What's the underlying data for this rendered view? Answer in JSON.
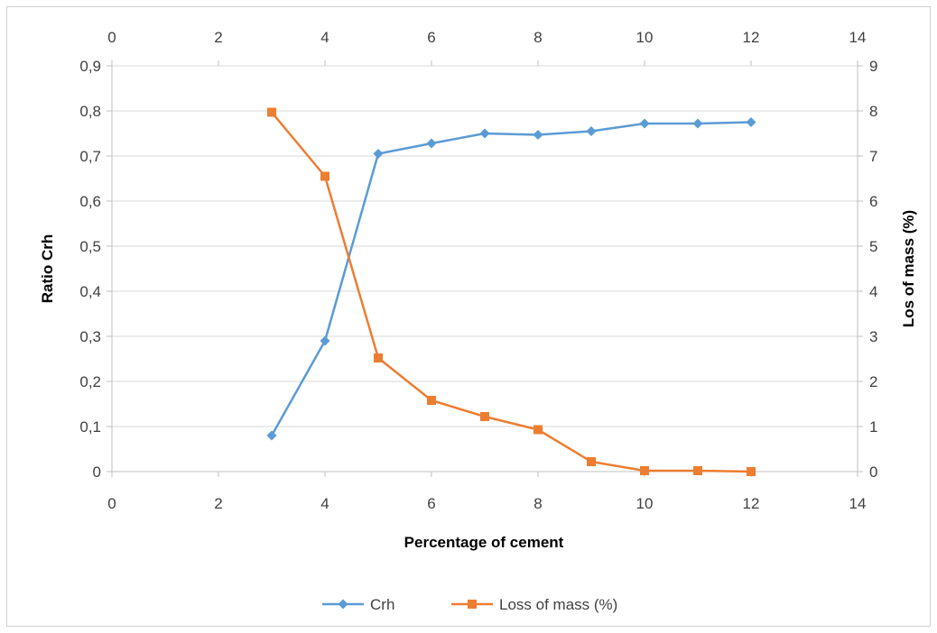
{
  "chart_data": {
    "type": "line",
    "title": "",
    "xlabel": "Percentage of cement",
    "ylabel": "Ratio Crh",
    "y2label": "Los of mass (%)",
    "xlim": [
      0,
      14
    ],
    "xticks": [
      "0",
      "2",
      "4",
      "6",
      "8",
      "10",
      "12",
      "14"
    ],
    "xticks_top": [
      "0",
      "2",
      "4",
      "6",
      "8",
      "10",
      "12",
      "14"
    ],
    "ylim": [
      0,
      0.9
    ],
    "yticks": [
      "0",
      "0,1",
      "0,2",
      "0,3",
      "0,4",
      "0,5",
      "0,6",
      "0,7",
      "0,8",
      "0,9"
    ],
    "y2lim": [
      0,
      9
    ],
    "y2ticks": [
      "0",
      "1",
      "2",
      "3",
      "4",
      "5",
      "6",
      "7",
      "8",
      "9"
    ],
    "grid": true,
    "legend_position": "bottom",
    "series": [
      {
        "name": "Crh",
        "axis": "left",
        "color": "#5B9BD5",
        "marker": "diamond",
        "x": [
          3,
          4,
          5,
          6,
          7,
          8,
          9,
          10,
          11,
          12
        ],
        "y": [
          0.08,
          0.29,
          0.705,
          0.728,
          0.75,
          0.747,
          0.755,
          0.772,
          0.772,
          0.775
        ]
      },
      {
        "name": "Loss of mass (%)",
        "axis": "right",
        "color": "#ED7D31",
        "marker": "square",
        "x": [
          3,
          4,
          5,
          6,
          7,
          8,
          9,
          10,
          11,
          12
        ],
        "y": [
          7.97,
          6.55,
          2.52,
          1.58,
          1.22,
          0.93,
          0.22,
          0.02,
          0.02,
          0.0
        ]
      }
    ]
  }
}
